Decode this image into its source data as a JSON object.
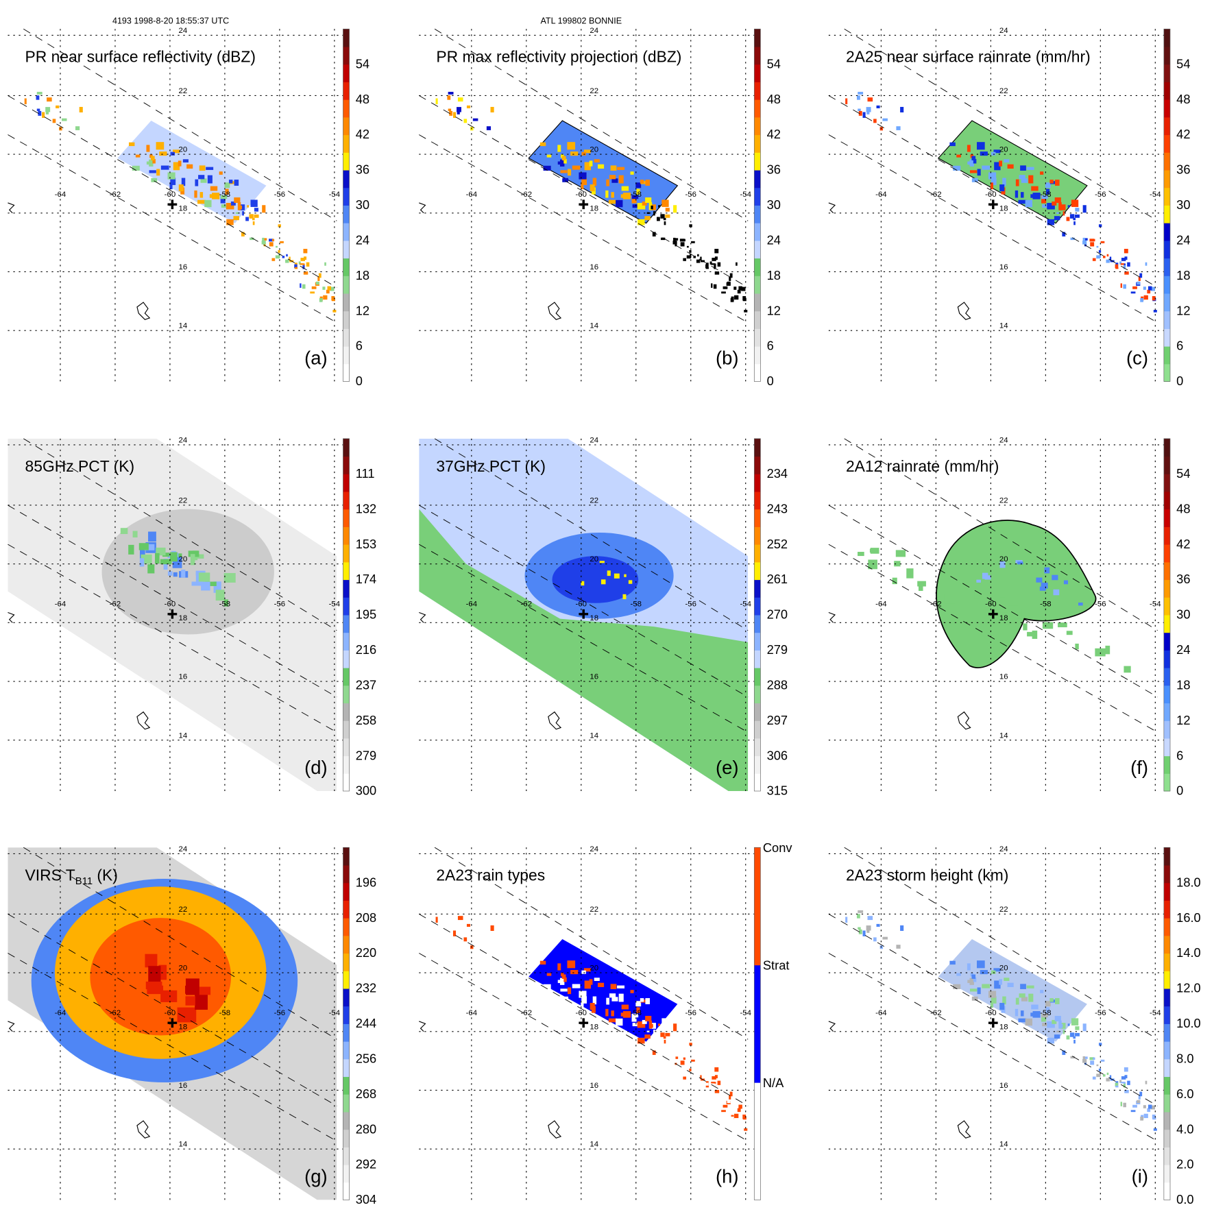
{
  "header": {
    "left": "4193 1998-8-20 18:55:37 UTC",
    "center": "ATL 199802 BONNIE"
  },
  "grid": {
    "lats": [
      "24",
      "22",
      "20",
      "18",
      "16",
      "14"
    ],
    "lons": [
      "-64",
      "-62",
      "-60",
      "-58",
      "-56",
      "-54"
    ]
  },
  "panels": [
    {
      "id": "a",
      "title": "PR near surface reflectivity (dBZ)",
      "label": "(a)",
      "kind": "pr_dbz",
      "colorbar": {
        "ticks": [
          "54",
          "48",
          "42",
          "36",
          "30",
          "24",
          "18",
          "12",
          "6",
          "0"
        ],
        "colors": [
          "#ffffff",
          "#f2f2f2",
          "#e2e2e2",
          "#cfcfcf",
          "#b4b4b4",
          "#8fd88f",
          "#66c866",
          "#c4d6ff",
          "#8cb4ff",
          "#4f86f5",
          "#1f3fe8",
          "#0a10c8",
          "#ffee00",
          "#ffb000",
          "#ff8800",
          "#ff5a00",
          "#e82000",
          "#c00000",
          "#8a0a0a",
          "#5a1010"
        ]
      }
    },
    {
      "id": "b",
      "title": "PR max reflectivity projection (dBZ)",
      "label": "(b)",
      "kind": "pr_max",
      "colorbar": {
        "ticks": [
          "54",
          "48",
          "42",
          "36",
          "30",
          "24",
          "18",
          "12",
          "6",
          "0"
        ],
        "colors": [
          "#ffffff",
          "#f2f2f2",
          "#e2e2e2",
          "#cfcfcf",
          "#b4b4b4",
          "#8fd88f",
          "#66c866",
          "#c4d6ff",
          "#8cb4ff",
          "#4f86f5",
          "#1f3fe8",
          "#0a10c8",
          "#ffee00",
          "#ffb000",
          "#ff8800",
          "#ff5a00",
          "#e82000",
          "#c00000",
          "#8a0a0a",
          "#5a1010"
        ]
      }
    },
    {
      "id": "c",
      "title": "2A25 near surface rainrate (mm/hr)",
      "label": "(c)",
      "kind": "pr_rain",
      "colorbar": {
        "ticks": [
          "54",
          "48",
          "42",
          "36",
          "30",
          "24",
          "18",
          "12",
          "6",
          "0"
        ],
        "colors": [
          "#8fe08f",
          "#70d070",
          "#c8d8ff",
          "#a0c0ff",
          "#70a8ff",
          "#4a90ff",
          "#2a60f0",
          "#1030e0",
          "#0000c8",
          "#ffee00",
          "#ffc000",
          "#ff9a00",
          "#ff7000",
          "#ff4000",
          "#e82000",
          "#c80000",
          "#a00000",
          "#801010",
          "#601010",
          "#501010"
        ]
      }
    },
    {
      "id": "d",
      "title": "85GHz PCT (K)",
      "label": "(d)",
      "kind": "tmi85",
      "colorbar": {
        "ticks": [
          "111",
          "132",
          "153",
          "174",
          "195",
          "216",
          "237",
          "258",
          "279",
          "300"
        ],
        "colors": [
          "#ffffff",
          "#f2f2f2",
          "#e2e2e2",
          "#cfcfcf",
          "#b4b4b4",
          "#8fd88f",
          "#66c866",
          "#c4d6ff",
          "#8cb4ff",
          "#4f86f5",
          "#1f3fe8",
          "#0a10c8",
          "#ffee00",
          "#ffb000",
          "#ff8800",
          "#ff5a00",
          "#e82000",
          "#c00000",
          "#8a0a0a",
          "#5a1010"
        ]
      }
    },
    {
      "id": "e",
      "title": "37GHz PCT (K)",
      "label": "(e)",
      "kind": "tmi37",
      "colorbar": {
        "ticks": [
          "234",
          "243",
          "252",
          "261",
          "270",
          "279",
          "288",
          "297",
          "306",
          "315"
        ],
        "colors": [
          "#ffffff",
          "#f2f2f2",
          "#e2e2e2",
          "#cfcfcf",
          "#b4b4b4",
          "#8fd88f",
          "#66c866",
          "#c4d6ff",
          "#8cb4ff",
          "#4f86f5",
          "#1f3fe8",
          "#0a10c8",
          "#ffee00",
          "#ffb000",
          "#ff8800",
          "#ff5a00",
          "#e82000",
          "#c00000",
          "#8a0a0a",
          "#5a1010"
        ]
      }
    },
    {
      "id": "f",
      "title": "2A12 rainrate (mm/hr)",
      "label": "(f)",
      "kind": "tmi_rain",
      "colorbar": {
        "ticks": [
          "54",
          "48",
          "42",
          "36",
          "30",
          "24",
          "18",
          "12",
          "6",
          "0"
        ],
        "colors": [
          "#8fe08f",
          "#70d070",
          "#c8d8ff",
          "#a0c0ff",
          "#70a8ff",
          "#4a90ff",
          "#2a60f0",
          "#1030e0",
          "#0000c8",
          "#ffee00",
          "#ffc000",
          "#ff9a00",
          "#ff7000",
          "#ff4000",
          "#e82000",
          "#c80000",
          "#a00000",
          "#801010",
          "#601010",
          "#501010"
        ]
      }
    },
    {
      "id": "g",
      "title": "VIRS T",
      "title_sub": "B11",
      "title_suffix": " (K)",
      "label": "(g)",
      "kind": "virs",
      "colorbar": {
        "ticks": [
          "196",
          "208",
          "220",
          "232",
          "244",
          "256",
          "268",
          "280",
          "292",
          "304"
        ],
        "colors": [
          "#ffffff",
          "#f2f2f2",
          "#e2e2e2",
          "#cfcfcf",
          "#b4b4b4",
          "#8fd88f",
          "#66c866",
          "#c4d6ff",
          "#8cb4ff",
          "#4f86f5",
          "#1f3fe8",
          "#0a10c8",
          "#ffee00",
          "#ffb000",
          "#ff8800",
          "#ff5a00",
          "#e82000",
          "#c00000",
          "#8a0a0a",
          "#5a1010"
        ]
      }
    },
    {
      "id": "h",
      "title": "2A23 rain types",
      "label": "(h)",
      "kind": "pr_type",
      "colorbar": {
        "ticks": [
          "Conv",
          "Strat",
          "N/A"
        ],
        "colors": [
          "#ffffff",
          "#0000ff",
          "#ff4a00"
        ]
      }
    },
    {
      "id": "i",
      "title": "2A23 storm height (km)",
      "label": "(i)",
      "kind": "pr_height",
      "colorbar": {
        "ticks": [
          "18.0",
          "16.0",
          "14.0",
          "12.0",
          "10.0",
          "8.0",
          "6.0",
          "4.0",
          "2.0",
          "0.0"
        ],
        "colors": [
          "#ffffff",
          "#f2f2f2",
          "#e2e2e2",
          "#cfcfcf",
          "#b4b4b4",
          "#8fd88f",
          "#66c866",
          "#c4d6ff",
          "#8cb4ff",
          "#4f86f5",
          "#1f3fe8",
          "#0a10c8",
          "#ffee00",
          "#ffb000",
          "#ff8800",
          "#ff5a00",
          "#e82000",
          "#c00000",
          "#8a0a0a",
          "#5a1010"
        ]
      }
    }
  ]
}
